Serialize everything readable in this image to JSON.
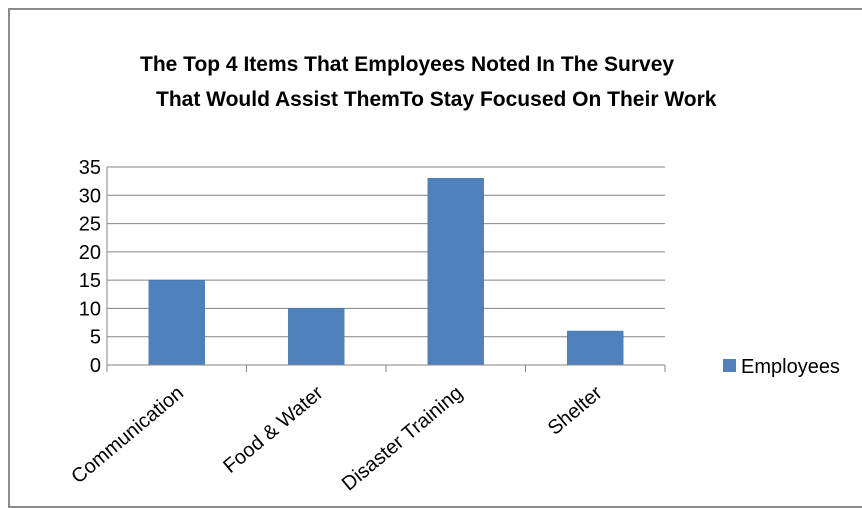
{
  "chart_data": {
    "type": "bar",
    "title_lines": [
      "The Top 4 Items That Employees Noted In The  Survey",
      "That Would Assist ThemTo Stay Focused On Their Work"
    ],
    "categories": [
      "Communication",
      "Food & Water",
      "Disaster Training",
      "Shelter"
    ],
    "series": [
      {
        "name": "Employees",
        "values": [
          15,
          10,
          33,
          6
        ]
      }
    ],
    "ylim": [
      0,
      35
    ],
    "yticks": [
      0,
      5,
      10,
      15,
      20,
      25,
      30,
      35
    ],
    "grid": true,
    "legend_position": "right",
    "colors": {
      "bar": "#4f81bd",
      "bar_border": "#3c6da8",
      "grid": "#868686",
      "axis": "#868686"
    }
  }
}
